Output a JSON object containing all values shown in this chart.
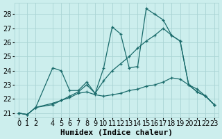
{
  "background_color": "#cceeed",
  "grid_color": "#aad4d4",
  "line_color": "#1a6b6b",
  "xlabel": "Humidex (Indice chaleur)",
  "xlabel_fontsize": 8,
  "tick_fontsize": 7,
  "xlim": [
    -0.5,
    23.5
  ],
  "ylim": [
    20.7,
    28.8
  ],
  "yticks": [
    21,
    22,
    23,
    24,
    25,
    26,
    27,
    28
  ],
  "xticks": [
    0,
    1,
    2,
    4,
    5,
    6,
    7,
    8,
    9,
    10,
    11,
    12,
    13,
    14,
    15,
    16,
    17,
    18,
    19,
    20,
    21,
    22,
    23
  ],
  "series": [
    {
      "x": [
        0,
        1,
        2,
        4,
        5,
        6,
        7,
        8,
        9,
        10,
        11,
        12,
        13,
        14,
        15,
        16,
        17,
        18,
        19,
        20,
        21,
        22,
        23
      ],
      "y": [
        21.0,
        20.9,
        21.4,
        24.2,
        24.0,
        22.6,
        22.6,
        23.2,
        22.4,
        24.2,
        27.1,
        26.6,
        24.2,
        24.3,
        28.4,
        28.0,
        27.6,
        26.5,
        26.1,
        23.0,
        22.5,
        22.2,
        21.6
      ]
    },
    {
      "x": [
        0,
        1,
        2,
        4,
        5,
        6,
        7,
        8,
        9,
        10,
        11,
        12,
        13,
        14,
        15,
        16,
        17,
        18,
        19,
        20,
        21,
        22,
        23
      ],
      "y": [
        21.0,
        20.9,
        21.4,
        21.6,
        21.9,
        22.2,
        22.5,
        23.0,
        22.4,
        23.3,
        24.0,
        24.5,
        25.0,
        25.6,
        26.1,
        26.5,
        27.0,
        26.5,
        26.1,
        23.0,
        22.5,
        22.2,
        21.6
      ]
    },
    {
      "x": [
        0,
        1,
        2,
        4,
        5,
        6,
        7,
        8,
        9,
        10,
        11,
        12,
        13,
        14,
        15,
        16,
        17,
        18,
        19,
        20,
        21,
        22,
        23
      ],
      "y": [
        21.0,
        20.9,
        21.4,
        21.7,
        21.9,
        22.1,
        22.4,
        22.5,
        22.3,
        22.2,
        22.3,
        22.4,
        22.6,
        22.7,
        22.9,
        23.0,
        23.2,
        23.5,
        23.4,
        23.0,
        22.7,
        22.2,
        21.6
      ]
    }
  ]
}
